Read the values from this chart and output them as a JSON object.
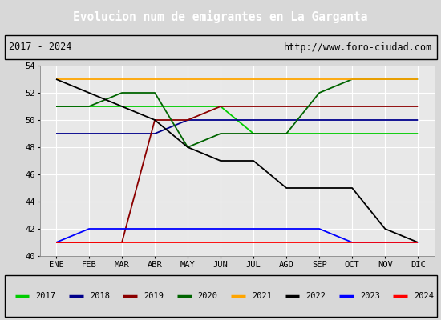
{
  "title": "Evolucion num de emigrantes en La Garganta",
  "subtitle_left": "2017 - 2024",
  "subtitle_right": "http://www.foro-ciudad.com",
  "months": [
    "ENE",
    "FEB",
    "MAR",
    "ABR",
    "MAY",
    "JUN",
    "JUL",
    "AGO",
    "SEP",
    "OCT",
    "NOV",
    "DIC"
  ],
  "ylim": [
    40,
    54
  ],
  "yticks": [
    40,
    42,
    44,
    46,
    48,
    50,
    52,
    54
  ],
  "series": {
    "2017": {
      "color": "#00cc00",
      "values": [
        51,
        51,
        51,
        51,
        51,
        51,
        49,
        49,
        49,
        49,
        49,
        49
      ]
    },
    "2018": {
      "color": "#00008b",
      "values": [
        49,
        49,
        49,
        49,
        50,
        50,
        50,
        50,
        50,
        50,
        50,
        50
      ]
    },
    "2019": {
      "color": "#8b0000",
      "values": [
        41,
        41,
        41,
        50,
        50,
        51,
        51,
        51,
        51,
        51,
        51,
        51
      ]
    },
    "2020": {
      "color": "#006400",
      "values": [
        51,
        51,
        52,
        52,
        48,
        49,
        49,
        49,
        52,
        53,
        53,
        53
      ]
    },
    "2021": {
      "color": "#ffa500",
      "values": [
        53,
        53,
        53,
        53,
        53,
        53,
        53,
        53,
        53,
        53,
        53,
        53
      ]
    },
    "2022": {
      "color": "#000000",
      "values": [
        53,
        52,
        51,
        50,
        48,
        47,
        47,
        45,
        45,
        45,
        42,
        41
      ]
    },
    "2023": {
      "color": "#0000ff",
      "values": [
        41,
        42,
        42,
        42,
        42,
        42,
        42,
        42,
        42,
        41,
        41,
        41
      ]
    },
    "2024": {
      "color": "#ff0000",
      "values": [
        41,
        41,
        41,
        41,
        41,
        41,
        41,
        41,
        41,
        41,
        41,
        41
      ]
    }
  },
  "background_plot": "#e8e8e8",
  "background_fig": "#d8d8d8",
  "title_bg": "#4472c4",
  "title_color": "#ffffff",
  "grid_color": "#ffffff",
  "line_width": 1.3
}
